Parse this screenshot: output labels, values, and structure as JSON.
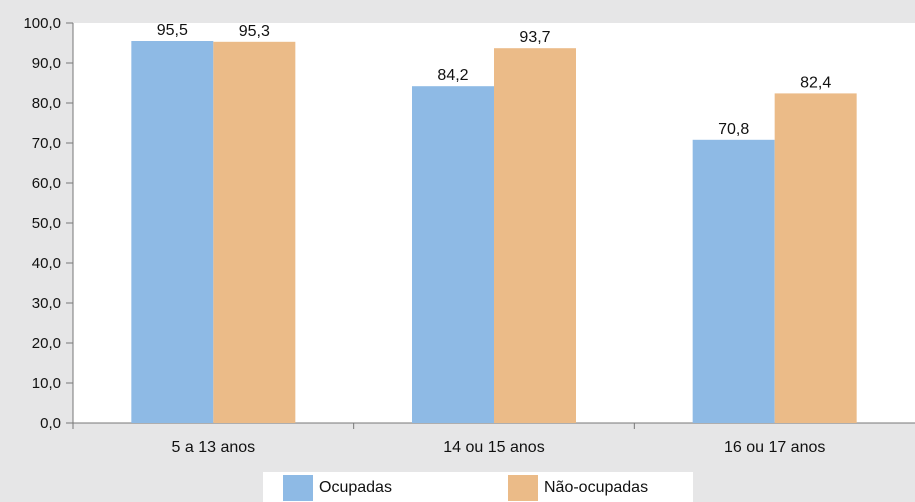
{
  "chart_data": {
    "type": "bar",
    "categories": [
      "5 a 13 anos",
      "14 ou 15 anos",
      "16 ou 17 anos"
    ],
    "series": [
      {
        "name": "Ocupadas",
        "values": [
          95.5,
          84.2,
          70.8
        ],
        "color": "#8ebae5"
      },
      {
        "name": "Não-ocupadas",
        "values": [
          95.3,
          93.7,
          82.4
        ],
        "color": "#ebbb88"
      }
    ],
    "data_labels": [
      [
        "95,5",
        "84,2",
        "70,8"
      ],
      [
        "95,3",
        "93,7",
        "82,4"
      ]
    ],
    "y_ticks": [
      "0,0",
      "10,0",
      "20,0",
      "30,0",
      "40,0",
      "50,0",
      "60,0",
      "70,0",
      "80,0",
      "90,0",
      "100,0"
    ],
    "ylim": [
      0,
      100
    ],
    "grid": false,
    "legend_position": "bottom",
    "background": "#e6e6e7",
    "plot_background": "#ffffff"
  }
}
